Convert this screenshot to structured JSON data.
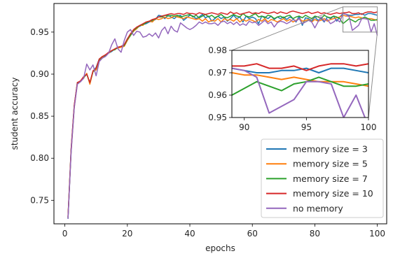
{
  "chart_data": {
    "type": "line",
    "title": "",
    "xlabel": "epochs",
    "ylabel": "student accuracy",
    "xlim": [
      -3.5,
      103
    ],
    "ylim": [
      0.722,
      0.984
    ],
    "xticks": [
      0,
      20,
      40,
      60,
      80,
      100
    ],
    "yticks": [
      0.75,
      0.8,
      0.85,
      0.9,
      0.95
    ],
    "ytick_labels": [
      "0.75",
      "0.80",
      "0.85",
      "0.90",
      "0.95"
    ],
    "legend_position": "lower-right",
    "grid": false,
    "x": [
      1,
      2,
      3,
      4,
      5,
      6,
      7,
      8,
      9,
      10,
      11,
      12,
      13,
      14,
      15,
      16,
      17,
      18,
      19,
      20,
      21,
      22,
      23,
      24,
      25,
      26,
      27,
      28,
      29,
      30,
      31,
      32,
      33,
      34,
      35,
      36,
      37,
      38,
      39,
      40,
      41,
      42,
      43,
      44,
      45,
      46,
      47,
      48,
      49,
      50,
      51,
      52,
      53,
      54,
      55,
      56,
      57,
      58,
      59,
      60,
      61,
      62,
      63,
      64,
      65,
      66,
      67,
      68,
      69,
      70,
      71,
      72,
      73,
      74,
      75,
      76,
      77,
      78,
      79,
      80,
      81,
      82,
      83,
      84,
      85,
      86,
      87,
      88,
      89,
      90,
      91,
      92,
      93,
      94,
      95,
      96,
      97,
      98,
      99,
      100
    ],
    "series": [
      {
        "name": "memory size = 3",
        "color": "#1f77b4",
        "values": [
          0.728,
          0.81,
          0.862,
          0.89,
          0.891,
          0.896,
          0.9,
          0.889,
          0.903,
          0.908,
          0.918,
          0.92,
          0.922,
          0.925,
          0.927,
          0.93,
          0.932,
          0.933,
          0.935,
          0.942,
          0.947,
          0.952,
          0.955,
          0.957,
          0.959,
          0.96,
          0.962,
          0.963,
          0.965,
          0.97,
          0.969,
          0.966,
          0.97,
          0.968,
          0.966,
          0.969,
          0.97,
          0.964,
          0.967,
          0.97,
          0.969,
          0.966,
          0.968,
          0.971,
          0.967,
          0.969,
          0.963,
          0.966,
          0.969,
          0.966,
          0.968,
          0.963,
          0.966,
          0.97,
          0.966,
          0.968,
          0.962,
          0.969,
          0.966,
          0.968,
          0.966,
          0.96,
          0.969,
          0.968,
          0.966,
          0.969,
          0.965,
          0.968,
          0.966,
          0.968,
          0.965,
          0.968,
          0.966,
          0.962,
          0.969,
          0.958,
          0.967,
          0.966,
          0.963,
          0.968,
          0.964,
          0.966,
          0.962,
          0.968,
          0.966,
          0.969,
          0.963,
          0.968,
          0.972,
          0.971,
          0.97,
          0.97,
          0.971,
          0.971,
          0.972,
          0.97,
          0.972,
          0.972,
          0.971,
          0.97
        ]
      },
      {
        "name": "memory size = 5",
        "color": "#ff7f0e",
        "values": [
          0.73,
          0.808,
          0.86,
          0.889,
          0.892,
          0.895,
          0.901,
          0.888,
          0.903,
          0.905,
          0.916,
          0.92,
          0.923,
          0.925,
          0.928,
          0.93,
          0.931,
          0.932,
          0.933,
          0.94,
          0.946,
          0.951,
          0.954,
          0.958,
          0.958,
          0.962,
          0.963,
          0.962,
          0.966,
          0.965,
          0.966,
          0.968,
          0.966,
          0.967,
          0.969,
          0.968,
          0.967,
          0.966,
          0.968,
          0.967,
          0.966,
          0.965,
          0.966,
          0.963,
          0.966,
          0.962,
          0.964,
          0.963,
          0.966,
          0.962,
          0.966,
          0.964,
          0.965,
          0.963,
          0.966,
          0.962,
          0.965,
          0.963,
          0.965,
          0.964,
          0.962,
          0.965,
          0.963,
          0.966,
          0.962,
          0.965,
          0.964,
          0.962,
          0.964,
          0.966,
          0.963,
          0.965,
          0.962,
          0.964,
          0.966,
          0.963,
          0.964,
          0.965,
          0.962,
          0.965,
          0.963,
          0.964,
          0.966,
          0.963,
          0.965,
          0.966,
          0.967,
          0.968,
          0.97,
          0.969,
          0.969,
          0.968,
          0.967,
          0.968,
          0.967,
          0.966,
          0.966,
          0.966,
          0.965,
          0.964
        ]
      },
      {
        "name": "memory size = 7",
        "color": "#2ca02c",
        "values": [
          0.729,
          0.81,
          0.862,
          0.89,
          0.891,
          0.896,
          0.9,
          0.89,
          0.903,
          0.907,
          0.917,
          0.921,
          0.922,
          0.926,
          0.928,
          0.929,
          0.932,
          0.933,
          0.934,
          0.941,
          0.946,
          0.952,
          0.955,
          0.958,
          0.959,
          0.961,
          0.963,
          0.964,
          0.966,
          0.968,
          0.968,
          0.97,
          0.969,
          0.97,
          0.969,
          0.97,
          0.968,
          0.969,
          0.97,
          0.971,
          0.968,
          0.97,
          0.967,
          0.969,
          0.971,
          0.968,
          0.97,
          0.967,
          0.969,
          0.971,
          0.968,
          0.967,
          0.969,
          0.971,
          0.969,
          0.968,
          0.972,
          0.969,
          0.968,
          0.97,
          0.972,
          0.968,
          0.969,
          0.967,
          0.97,
          0.969,
          0.966,
          0.968,
          0.969,
          0.967,
          0.969,
          0.97,
          0.966,
          0.968,
          0.969,
          0.967,
          0.97,
          0.968,
          0.966,
          0.969,
          0.968,
          0.966,
          0.97,
          0.968,
          0.967,
          0.969,
          0.968,
          0.966,
          0.96,
          0.963,
          0.966,
          0.964,
          0.962,
          0.965,
          0.966,
          0.968,
          0.966,
          0.964,
          0.964,
          0.965
        ]
      },
      {
        "name": "memory size = 10",
        "color": "#d62728",
        "values": [
          0.73,
          0.811,
          0.863,
          0.89,
          0.892,
          0.897,
          0.9,
          0.89,
          0.904,
          0.907,
          0.918,
          0.921,
          0.923,
          0.926,
          0.928,
          0.93,
          0.932,
          0.933,
          0.935,
          0.942,
          0.948,
          0.953,
          0.956,
          0.958,
          0.96,
          0.962,
          0.963,
          0.965,
          0.966,
          0.968,
          0.969,
          0.97,
          0.971,
          0.972,
          0.971,
          0.972,
          0.972,
          0.971,
          0.973,
          0.972,
          0.972,
          0.971,
          0.973,
          0.972,
          0.971,
          0.972,
          0.973,
          0.972,
          0.971,
          0.973,
          0.972,
          0.971,
          0.974,
          0.972,
          0.973,
          0.971,
          0.972,
          0.973,
          0.974,
          0.972,
          0.973,
          0.972,
          0.974,
          0.973,
          0.972,
          0.973,
          0.974,
          0.972,
          0.974,
          0.973,
          0.972,
          0.974,
          0.975,
          0.974,
          0.973,
          0.972,
          0.973,
          0.974,
          0.972,
          0.973,
          0.974,
          0.972,
          0.973,
          0.972,
          0.971,
          0.972,
          0.973,
          0.972,
          0.973,
          0.973,
          0.974,
          0.972,
          0.972,
          0.973,
          0.971,
          0.973,
          0.974,
          0.974,
          0.973,
          0.974
        ]
      },
      {
        "name": "no memory",
        "color": "#9467bd",
        "values": [
          0.728,
          0.807,
          0.86,
          0.888,
          0.891,
          0.895,
          0.912,
          0.905,
          0.911,
          0.898,
          0.915,
          0.919,
          0.921,
          0.925,
          0.935,
          0.942,
          0.93,
          0.926,
          0.94,
          0.95,
          0.953,
          0.946,
          0.951,
          0.95,
          0.944,
          0.945,
          0.948,
          0.945,
          0.949,
          0.943,
          0.952,
          0.956,
          0.948,
          0.957,
          0.952,
          0.95,
          0.961,
          0.958,
          0.955,
          0.953,
          0.955,
          0.958,
          0.962,
          0.96,
          0.962,
          0.96,
          0.96,
          0.961,
          0.958,
          0.962,
          0.963,
          0.96,
          0.962,
          0.959,
          0.962,
          0.958,
          0.96,
          0.958,
          0.963,
          0.961,
          0.962,
          0.958,
          0.961,
          0.964,
          0.96,
          0.962,
          0.956,
          0.961,
          0.963,
          0.962,
          0.96,
          0.962,
          0.965,
          0.963,
          0.966,
          0.96,
          0.962,
          0.964,
          0.962,
          0.955,
          0.962,
          0.968,
          0.963,
          0.965,
          0.96,
          0.962,
          0.965,
          0.962,
          0.972,
          0.971,
          0.968,
          0.952,
          0.955,
          0.958,
          0.966,
          0.966,
          0.965,
          0.95,
          0.96,
          0.946
        ]
      }
    ],
    "inset": {
      "xlim": [
        89,
        100
      ],
      "ylim": [
        0.95,
        0.98
      ],
      "xticks": [
        90,
        95,
        100
      ],
      "yticks": [
        0.95,
        0.96,
        0.97,
        0.98
      ],
      "ytick_labels": [
        "0.95",
        "0.96",
        "0.97",
        "0.98"
      ]
    }
  }
}
